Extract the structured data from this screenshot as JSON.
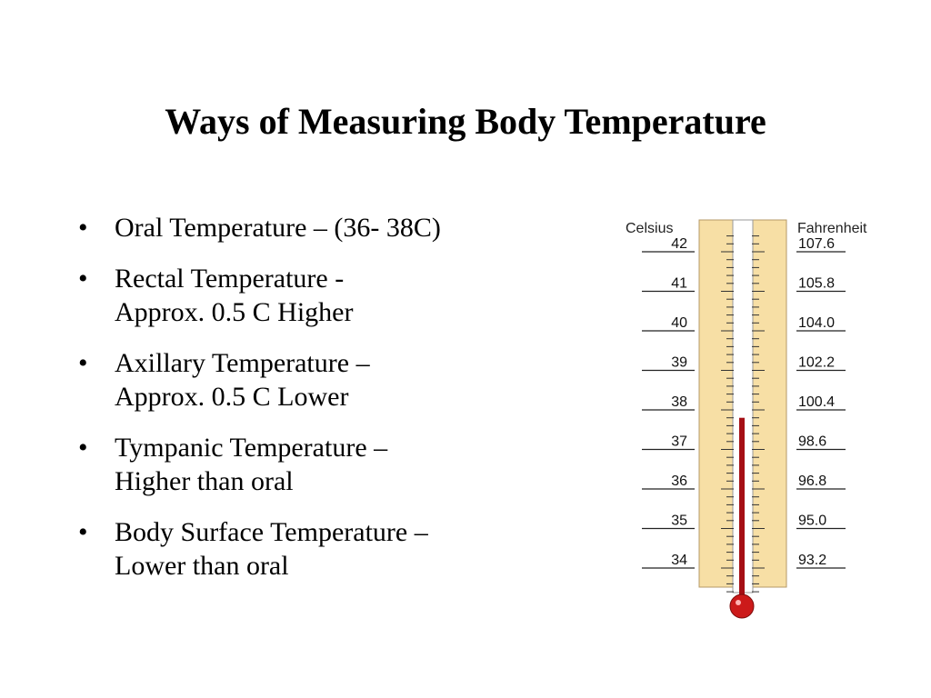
{
  "slide": {
    "title": "Ways of Measuring Body Temperature",
    "bullet_glyph": "•",
    "bullets": [
      {
        "line1": "Oral Temperature – (36- 38C)",
        "line2": ""
      },
      {
        "line1": " Rectal Temperature -",
        "line2": "Approx. 0.5 C Higher"
      },
      {
        "line1": " Axillary Temperature –",
        "line2": "Approx. 0.5 C Lower"
      },
      {
        "line1": " Tympanic Temperature –",
        "line2": "Higher than oral"
      },
      {
        "line1": " Body Surface Temperature –",
        "line2": "Lower than oral"
      }
    ]
  },
  "thermometer": {
    "celsius_label": "Celsius",
    "fahrenheit_label": "Fahrenheit",
    "celsius_marks": [
      "42",
      "41",
      "40",
      "39",
      "38",
      "37",
      "36",
      "35",
      "34"
    ],
    "fahrenheit_marks": [
      "107.6",
      "105.8",
      "104.0",
      "102.2",
      "100.4",
      "98.6",
      "96.8",
      "95.0",
      "93.2"
    ],
    "mercury_level_celsius": 37.8,
    "colors": {
      "scale_fill": "#f7dfa5",
      "scale_border": "#b59a68",
      "mercury": "#a50f15",
      "bulb": "#cc1a1a"
    }
  }
}
